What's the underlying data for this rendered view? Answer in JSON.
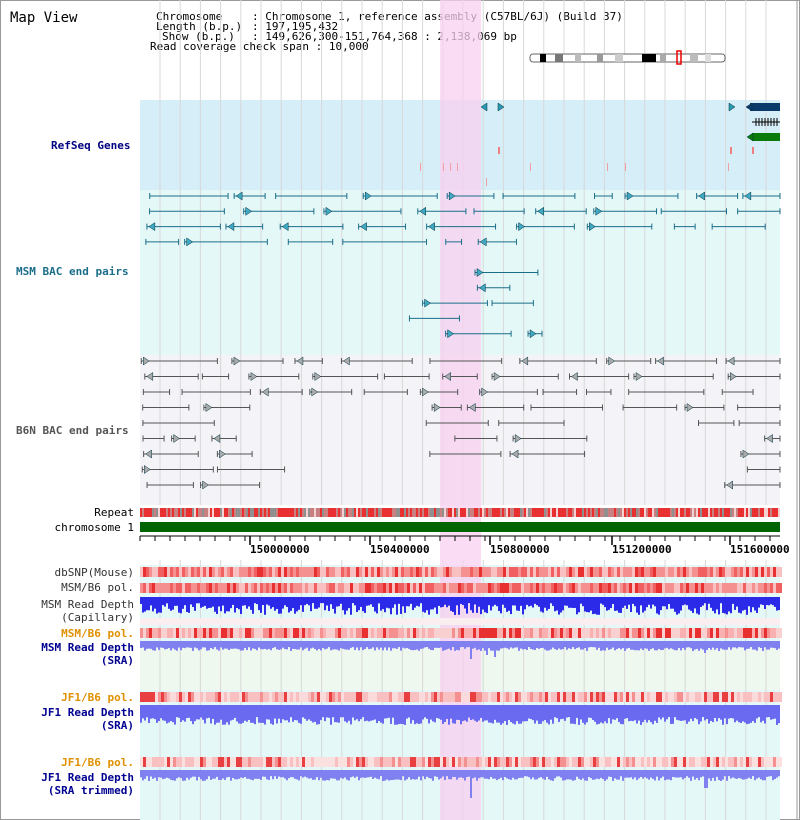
{
  "title": "Map View",
  "info": {
    "chromosome_label": "Chromosome",
    "chromosome_value": "Chromosome 1, reference assembly (C57BL/6J) (Build 37)",
    "length_label": "Length (b.p.)",
    "length_value": "197,195,432",
    "show_label": "Show (b.p.)",
    "show_value": "149,626,300-151,764,368 : 2,138,069 bp",
    "coverage_label": "Read coverage check span",
    "coverage_value": "10,000"
  },
  "tracks": {
    "refseq": "RefSeq Genes",
    "msm_bac": "MSM BAC end pairs",
    "b6n_bac": "B6N BAC end pairs",
    "repeat": "Repeat",
    "chromosome": "chromosome 1"
  },
  "ruler": {
    "ticks": [
      "150000000",
      "150400000",
      "150800000",
      "151200000",
      "151600000"
    ]
  },
  "sample_tracks": {
    "dbsnp": "dbSNP(Mouse)",
    "msm_b6_pol_1": "MSM/B6 pol.",
    "msm_depth_cap_1": "MSM Read Depth",
    "msm_depth_cap_2": "(Capillary)",
    "msm_b6_pol_2": "MSM/B6 pol.",
    "msm_depth_sra_1": "MSM Read Depth",
    "msm_depth_sra_2": "(SRA)",
    "jf1_pol_1": "JF1/B6 pol.",
    "jf1_depth_1": "JF1 Read Depth",
    "jf1_depth_2": "(SRA)",
    "jf1_pol_2": "JF1/B6 pol.",
    "jf1_trim_1": "JF1 Read Depth",
    "jf1_trim_2": "(SRA trimmed)"
  },
  "colors": {
    "refseq_bg": "#d6eef8",
    "msm_bg": "#e4f8f8",
    "b6n_bg": "#f4f4f8",
    "highlight": "#f8d0f0",
    "bac_line": "#1b6e8a",
    "b6n_line": "#555555",
    "chromosome": "#006400",
    "depth": "#3333ee",
    "pol": "#f06060"
  }
}
